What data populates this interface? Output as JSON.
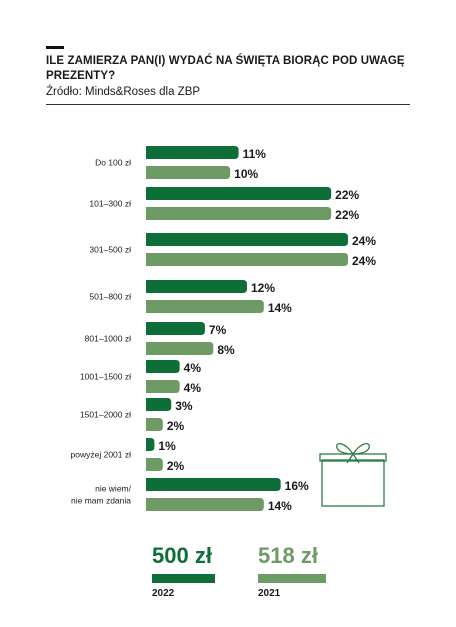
{
  "header": {
    "title": "ILE ZAMIERZA PAN(I) WYDAĆ NA ŚWIĘTA BIORĄC POD UWAGĘ PREZENTY?",
    "source": "Źródło: Minds&Roses dla ZBP"
  },
  "colors": {
    "series_2022": "#0e6e37",
    "series_2021": "#6e9a66"
  },
  "chart_data": {
    "type": "bar",
    "orientation": "horizontal",
    "categories": [
      "Do 100 zł",
      "101–300 zł",
      "301–500 zł",
      "501–800 zł",
      "801–1000 zł",
      "1001–1500 zł",
      "1501–2000 zł",
      "powyżej 2001 zł",
      "nie wiem/\nnie mam zdania"
    ],
    "series": [
      {
        "name": "2022",
        "values": [
          11,
          22,
          24,
          12,
          7,
          4,
          3,
          1,
          16
        ]
      },
      {
        "name": "2021",
        "values": [
          10,
          22,
          24,
          14,
          8,
          4,
          2,
          2,
          14
        ]
      }
    ],
    "value_suffix": "%",
    "xlim": [
      0,
      24
    ]
  },
  "summary": [
    {
      "value": "500 zł",
      "year": "2022"
    },
    {
      "value": "518 zł",
      "year": "2021"
    }
  ],
  "decoration": {
    "icon": "gift-box-icon"
  }
}
